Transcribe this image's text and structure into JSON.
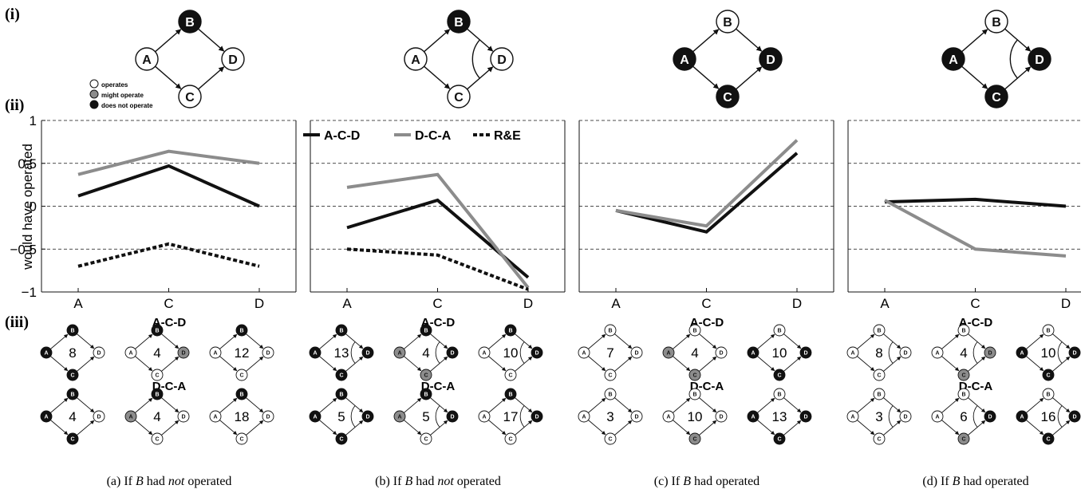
{
  "figure": {
    "row_labels": [
      "(i)",
      "(ii)",
      "(iii)"
    ],
    "ylabel": "would have operated",
    "legend": {
      "node_states": [
        "operates",
        "might operate",
        "does not operate"
      ],
      "series": [
        "A-C-D",
        "D-C-A",
        "R&E"
      ]
    }
  },
  "colors": {
    "operates": "#ffffff",
    "might": "#8c8c8c",
    "not": "#111111",
    "acd": "#111111",
    "dca": "#8c8c8c",
    "re": "#111111"
  },
  "panels": [
    {
      "caption": {
        "pre": "(a) If ",
        "var": "B",
        "mid": " had ",
        "em": "not",
        "post": " operated"
      },
      "top_diagram": {
        "A": "operates",
        "B": "not",
        "C": "operates",
        "D": "operates",
        "arc": false
      },
      "grid": {
        "rows": [
          {
            "label": "A-C-D",
            "cells": [
              {
                "count": "8",
                "A": "not",
                "B": "not",
                "C": "not",
                "D": "operates",
                "arc": false
              },
              {
                "count": "4",
                "A": "operates",
                "B": "not",
                "C": "operates",
                "D": "might",
                "arc": false
              },
              {
                "count": "12",
                "A": "operates",
                "B": "not",
                "C": "operates",
                "D": "operates",
                "arc": false
              }
            ]
          },
          {
            "label": "D-C-A",
            "cells": [
              {
                "count": "4",
                "A": "not",
                "B": "not",
                "C": "not",
                "D": "operates",
                "arc": false
              },
              {
                "count": "4",
                "A": "might",
                "B": "not",
                "C": "operates",
                "D": "operates",
                "arc": false
              },
              {
                "count": "18",
                "A": "operates",
                "B": "not",
                "C": "operates",
                "D": "operates",
                "arc": false
              }
            ]
          }
        ]
      }
    },
    {
      "caption": {
        "pre": "(b) If ",
        "var": "B",
        "mid": " had ",
        "em": "not",
        "post": " operated"
      },
      "top_diagram": {
        "A": "operates",
        "B": "not",
        "C": "operates",
        "D": "operates",
        "arc": true
      },
      "grid": {
        "rows": [
          {
            "label": "A-C-D",
            "cells": [
              {
                "count": "13",
                "A": "not",
                "B": "not",
                "C": "not",
                "D": "not",
                "arc": true
              },
              {
                "count": "4",
                "A": "might",
                "B": "not",
                "C": "might",
                "D": "not",
                "arc": true
              },
              {
                "count": "10",
                "A": "operates",
                "B": "not",
                "C": "operates",
                "D": "not",
                "arc": true
              }
            ]
          },
          {
            "label": "D-C-A",
            "cells": [
              {
                "count": "5",
                "A": "not",
                "B": "not",
                "C": "not",
                "D": "not",
                "arc": true
              },
              {
                "count": "5",
                "A": "might",
                "B": "not",
                "C": "operates",
                "D": "not",
                "arc": true
              },
              {
                "count": "17",
                "A": "operates",
                "B": "not",
                "C": "operates",
                "D": "not",
                "arc": true
              }
            ]
          }
        ]
      }
    },
    {
      "caption": {
        "pre": "(c) If ",
        "var": "B",
        "mid": " had operated",
        "em": "",
        "post": ""
      },
      "top_diagram": {
        "A": "not",
        "B": "operates",
        "C": "not",
        "D": "not",
        "arc": false
      },
      "grid": {
        "rows": [
          {
            "label": "A-C-D",
            "cells": [
              {
                "count": "7",
                "A": "operates",
                "B": "operates",
                "C": "operates",
                "D": "operates",
                "arc": false
              },
              {
                "count": "4",
                "A": "might",
                "B": "operates",
                "C": "might",
                "D": "operates",
                "arc": false
              },
              {
                "count": "10",
                "A": "not",
                "B": "operates",
                "C": "not",
                "D": "not",
                "arc": false
              }
            ]
          },
          {
            "label": "D-C-A",
            "cells": [
              {
                "count": "3",
                "A": "operates",
                "B": "operates",
                "C": "operates",
                "D": "operates",
                "arc": false
              },
              {
                "count": "10",
                "A": "operates",
                "B": "operates",
                "C": "might",
                "D": "operates",
                "arc": false
              },
              {
                "count": "13",
                "A": "not",
                "B": "operates",
                "C": "not",
                "D": "not",
                "arc": false
              }
            ]
          }
        ]
      }
    },
    {
      "caption": {
        "pre": "(d) If ",
        "var": "B",
        "mid": " had operated",
        "em": "",
        "post": ""
      },
      "top_diagram": {
        "A": "not",
        "B": "operates",
        "C": "not",
        "D": "not",
        "arc": true
      },
      "grid": {
        "rows": [
          {
            "label": "A-C-D",
            "cells": [
              {
                "count": "8",
                "A": "operates",
                "B": "operates",
                "C": "operates",
                "D": "operates",
                "arc": true
              },
              {
                "count": "4",
                "A": "operates",
                "B": "operates",
                "C": "might",
                "D": "might",
                "arc": true
              },
              {
                "count": "10",
                "A": "not",
                "B": "operates",
                "C": "not",
                "D": "not",
                "arc": true
              }
            ]
          },
          {
            "label": "D-C-A",
            "cells": [
              {
                "count": "3",
                "A": "operates",
                "B": "operates",
                "C": "operates",
                "D": "operates",
                "arc": true
              },
              {
                "count": "6",
                "A": "operates",
                "B": "operates",
                "C": "might",
                "D": "not",
                "arc": true
              },
              {
                "count": "16",
                "A": "not",
                "B": "operates",
                "C": "not",
                "D": "not",
                "arc": true
              }
            ]
          }
        ]
      }
    }
  ],
  "chart_data": [
    {
      "type": "line",
      "categories": [
        "A",
        "C",
        "D"
      ],
      "ylim": [
        -1,
        1
      ],
      "yticks": [
        1,
        0.5,
        0,
        -0.5,
        -1
      ],
      "ytick_labels": [
        "1",
        "0.5",
        "0",
        "−0.5",
        "−1"
      ],
      "ylabel": "would have operated",
      "grid": "horizontal dashed",
      "series": [
        {
          "key": "acd",
          "values": [
            0.12,
            0.47,
            0.0
          ]
        },
        {
          "key": "dca",
          "values": [
            0.37,
            0.64,
            0.5
          ]
        },
        {
          "key": "re",
          "values": [
            -0.7,
            -0.44,
            -0.7
          ]
        }
      ]
    },
    {
      "type": "line",
      "categories": [
        "A",
        "C",
        "D"
      ],
      "ylim": [
        -1,
        1
      ],
      "grid": "horizontal dashed",
      "legend_position": "top",
      "series": [
        {
          "key": "acd",
          "name": "A-C-D",
          "values": [
            -0.25,
            0.07,
            -0.83
          ]
        },
        {
          "key": "dca",
          "name": "D-C-A",
          "values": [
            0.22,
            0.37,
            -0.95
          ]
        },
        {
          "key": "re",
          "name": "R&E",
          "values": [
            -0.5,
            -0.57,
            -0.97
          ]
        }
      ]
    },
    {
      "type": "line",
      "categories": [
        "A",
        "C",
        "D"
      ],
      "ylim": [
        -1,
        1
      ],
      "grid": "horizontal dashed",
      "series": [
        {
          "key": "acd",
          "values": [
            -0.05,
            -0.3,
            0.62
          ]
        },
        {
          "key": "dca",
          "values": [
            -0.05,
            -0.23,
            0.77
          ]
        }
      ]
    },
    {
      "type": "line",
      "categories": [
        "A",
        "C",
        "D"
      ],
      "ylim": [
        -1,
        1
      ],
      "grid": "horizontal dashed",
      "series": [
        {
          "key": "acd",
          "values": [
            0.05,
            0.08,
            0.0
          ]
        },
        {
          "key": "dca",
          "values": [
            0.07,
            -0.5,
            -0.58
          ]
        }
      ]
    }
  ]
}
